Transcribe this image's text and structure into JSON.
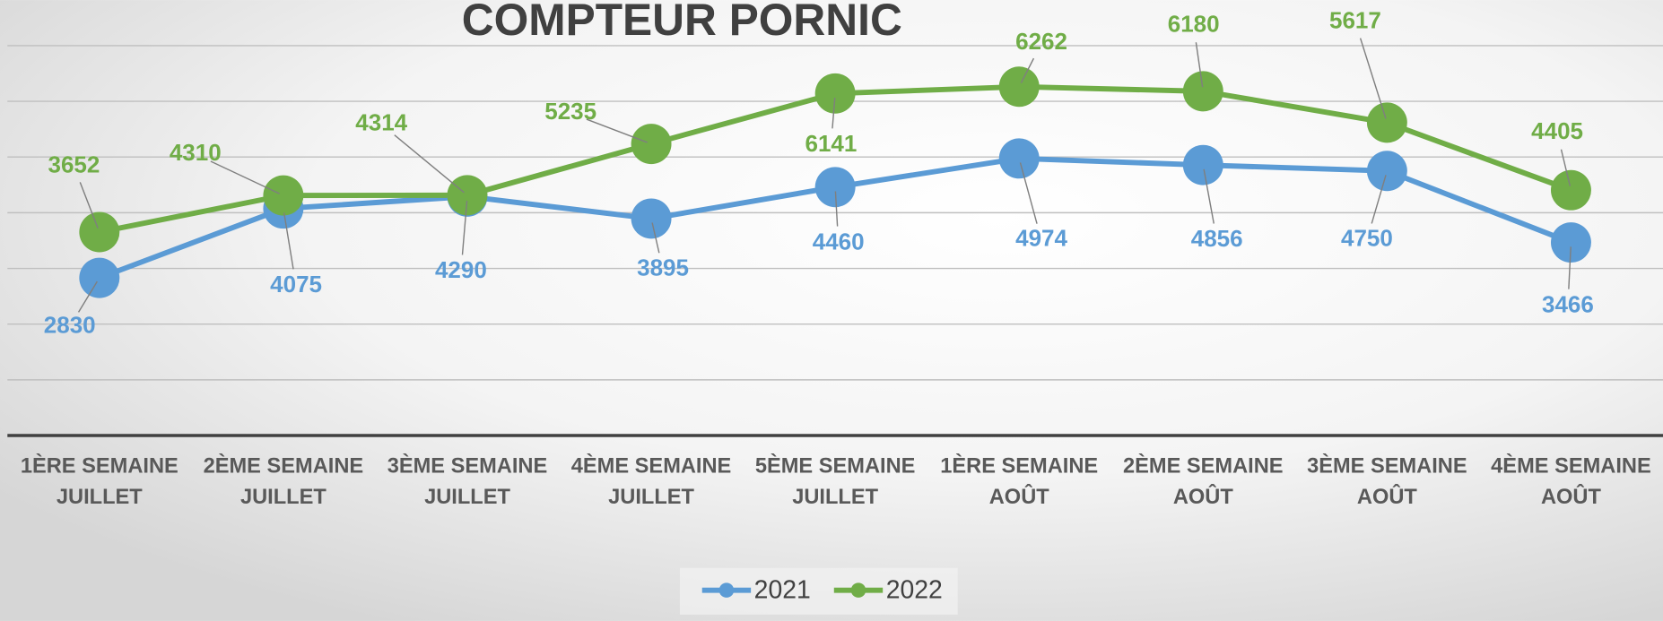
{
  "chart_data": {
    "type": "line",
    "title": "COMPTEUR PORNIC",
    "categories": [
      [
        "1ÈRE SEMAINE",
        "JUILLET"
      ],
      [
        "2ÈME SEMAINE",
        "JUILLET"
      ],
      [
        "3ÈME SEMAINE",
        "JUILLET"
      ],
      [
        "4ÈME SEMAINE",
        "JUILLET"
      ],
      [
        "5ÈME SEMAINE",
        "JUILLET"
      ],
      [
        "1ÈRE SEMAINE",
        "AOÛT"
      ],
      [
        "2ÈME SEMAINE",
        "AOÛT"
      ],
      [
        "3ÈME SEMAINE",
        "AOÛT"
      ],
      [
        "4ÈME SEMAINE",
        "AOÛT"
      ]
    ],
    "series": [
      {
        "name": "2021",
        "color": "#5b9bd5",
        "values": [
          2830,
          4075,
          4290,
          3895,
          4460,
          4974,
          4856,
          4750,
          3466
        ]
      },
      {
        "name": "2022",
        "color": "#70ad47",
        "values": [
          3652,
          4310,
          4314,
          5235,
          6141,
          6262,
          6180,
          5617,
          4405
        ]
      }
    ],
    "ylim": [
      0,
      7000
    ],
    "yticks": [
      0,
      1000,
      2000,
      3000,
      4000,
      5000,
      6000,
      7000
    ],
    "grid": true,
    "legend": "bottom"
  }
}
